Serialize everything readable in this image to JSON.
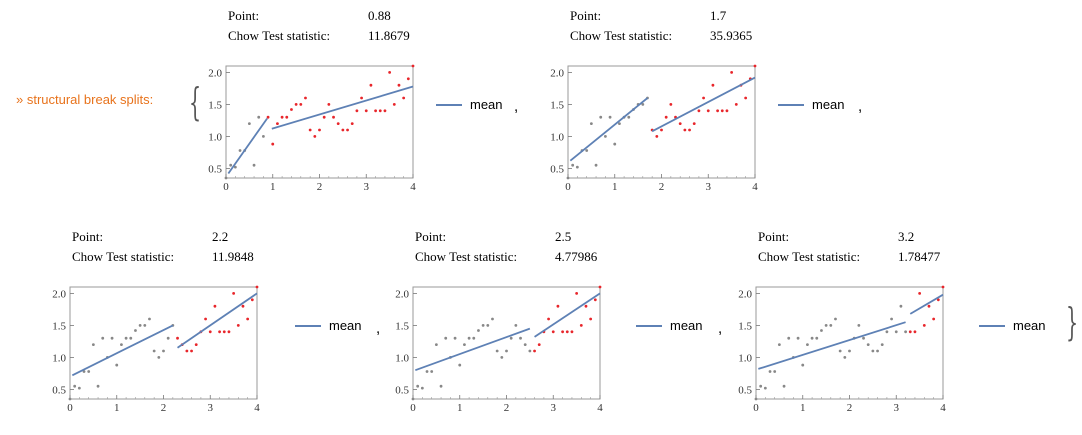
{
  "prefix": "» structural break splits:",
  "legend_label": "mean",
  "point_label": "Point:",
  "stat_label": "Chow Test statistic:",
  "colors": {
    "before": "#888888",
    "after": "#e8262b",
    "fit": "#5e81b5",
    "prefix": "#e8731c"
  },
  "chart_data": [
    {
      "type": "scatter",
      "point": "0.88",
      "stat": "11.8679",
      "xlim": [
        0,
        4
      ],
      "ylim": [
        0.35,
        2.1
      ],
      "x_ticks": [
        0,
        1,
        2,
        3,
        4
      ],
      "y_ticks": [
        "0.5",
        "1.0",
        "1.5",
        "2.0"
      ],
      "break": 0.88,
      "fits": [
        {
          "x": [
            0.05,
            0.88
          ],
          "y": [
            0.42,
            1.28
          ]
        },
        {
          "x": [
            0.98,
            4.0
          ],
          "y": [
            1.12,
            1.78
          ]
        }
      ]
    },
    {
      "type": "scatter",
      "point": "1.7",
      "stat": "35.9365",
      "xlim": [
        0,
        4
      ],
      "ylim": [
        0.35,
        2.1
      ],
      "x_ticks": [
        0,
        1,
        2,
        3,
        4
      ],
      "y_ticks": [
        "0.5",
        "1.0",
        "1.5",
        "2.0"
      ],
      "break": 1.7,
      "fits": [
        {
          "x": [
            0.05,
            1.7
          ],
          "y": [
            0.62,
            1.6
          ]
        },
        {
          "x": [
            1.8,
            4.0
          ],
          "y": [
            1.08,
            1.92
          ]
        }
      ]
    },
    {
      "type": "scatter",
      "point": "2.2",
      "stat": "11.9848",
      "xlim": [
        0,
        4
      ],
      "ylim": [
        0.35,
        2.1
      ],
      "x_ticks": [
        0,
        1,
        2,
        3,
        4
      ],
      "y_ticks": [
        "0.5",
        "1.0",
        "1.5",
        "2.0"
      ],
      "break": 2.2,
      "fits": [
        {
          "x": [
            0.05,
            2.2
          ],
          "y": [
            0.72,
            1.5
          ]
        },
        {
          "x": [
            2.3,
            4.0
          ],
          "y": [
            1.15,
            2.0
          ]
        }
      ]
    },
    {
      "type": "scatter",
      "point": "2.5",
      "stat": "4.77986",
      "xlim": [
        0,
        4
      ],
      "ylim": [
        0.35,
        2.1
      ],
      "x_ticks": [
        0,
        1,
        2,
        3,
        4
      ],
      "y_ticks": [
        "0.5",
        "1.0",
        "1.5",
        "2.0"
      ],
      "break": 2.5,
      "fits": [
        {
          "x": [
            0.05,
            2.5
          ],
          "y": [
            0.8,
            1.45
          ]
        },
        {
          "x": [
            2.6,
            4.0
          ],
          "y": [
            1.32,
            2.0
          ]
        }
      ]
    },
    {
      "type": "scatter",
      "point": "3.2",
      "stat": "1.78477",
      "xlim": [
        0,
        4
      ],
      "ylim": [
        0.35,
        2.1
      ],
      "x_ticks": [
        0,
        1,
        2,
        3,
        4
      ],
      "y_ticks": [
        "0.5",
        "1.0",
        "1.5",
        "2.0"
      ],
      "break": 3.2,
      "fits": [
        {
          "x": [
            0.05,
            3.2
          ],
          "y": [
            0.82,
            1.55
          ]
        },
        {
          "x": [
            3.3,
            4.0
          ],
          "y": [
            1.68,
            1.98
          ]
        }
      ]
    }
  ],
  "points": {
    "x": [
      0.0,
      0.1,
      0.2,
      0.3,
      0.4,
      0.5,
      0.6,
      0.7,
      0.8,
      0.9,
      1.0,
      1.1,
      1.2,
      1.3,
      1.4,
      1.5,
      1.6,
      1.7,
      1.8,
      1.9,
      2.0,
      2.1,
      2.2,
      2.3,
      2.4,
      2.5,
      2.6,
      2.7,
      2.8,
      2.9,
      3.0,
      3.1,
      3.2,
      3.3,
      3.4,
      3.5,
      3.6,
      3.7,
      3.8,
      3.9,
      4.0
    ],
    "y": [
      0.35,
      0.55,
      0.52,
      0.78,
      0.78,
      1.2,
      0.55,
      1.3,
      1.0,
      1.3,
      0.88,
      1.2,
      1.3,
      1.3,
      1.42,
      1.5,
      1.5,
      1.6,
      1.1,
      1.0,
      1.1,
      1.3,
      1.5,
      1.3,
      1.2,
      1.1,
      1.1,
      1.2,
      1.4,
      1.6,
      1.4,
      1.8,
      1.4,
      1.4,
      1.4,
      2.0,
      1.5,
      1.8,
      1.6,
      1.9,
      2.1
    ]
  }
}
